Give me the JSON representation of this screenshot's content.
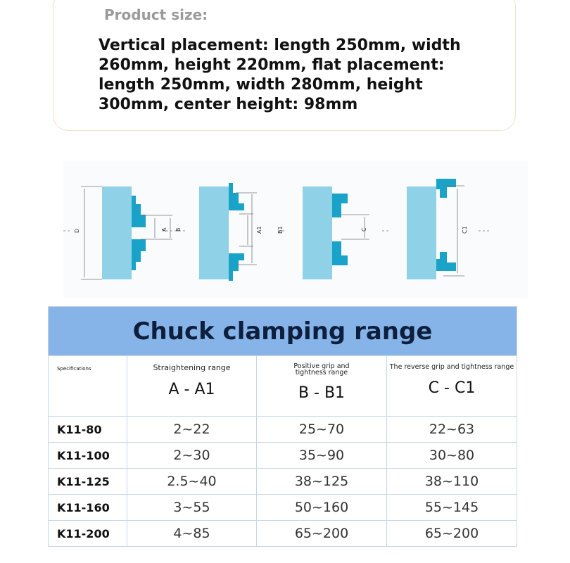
{
  "product_size": {
    "title": "Product size:",
    "text": "Vertical placement: length 250mm, width 260mm, height 220mm, flat placement: length 250mm, width 280mm, height 300mm, center height: 98mm"
  },
  "diagram": {
    "labels": [
      "D",
      "A",
      "B",
      "A1",
      "B1",
      "C",
      "C1"
    ],
    "colors": {
      "body": "#8fd1e6",
      "jaw": "#19a3c8"
    }
  },
  "table": {
    "title": "Chuck clamping range",
    "headers": [
      {
        "sub": "Specifications",
        "big": ""
      },
      {
        "sub": "Straightening range",
        "big": "A - A1"
      },
      {
        "sub": "Positive grip and tightness range",
        "big": "B - B1"
      },
      {
        "sub": "The reverse grip and tightness range",
        "big": "C - C1"
      }
    ],
    "rows": [
      [
        "K11-80",
        "2~22",
        "25~70",
        "22~63"
      ],
      [
        "K11-100",
        "2~30",
        "35~90",
        "30~80"
      ],
      [
        "K11-125",
        "2.5~40",
        "38~125",
        "38~110"
      ],
      [
        "K11-160",
        "3~55",
        "50~160",
        "55~145"
      ],
      [
        "K11-200",
        "4~85",
        "65~200",
        "65~200"
      ]
    ]
  }
}
